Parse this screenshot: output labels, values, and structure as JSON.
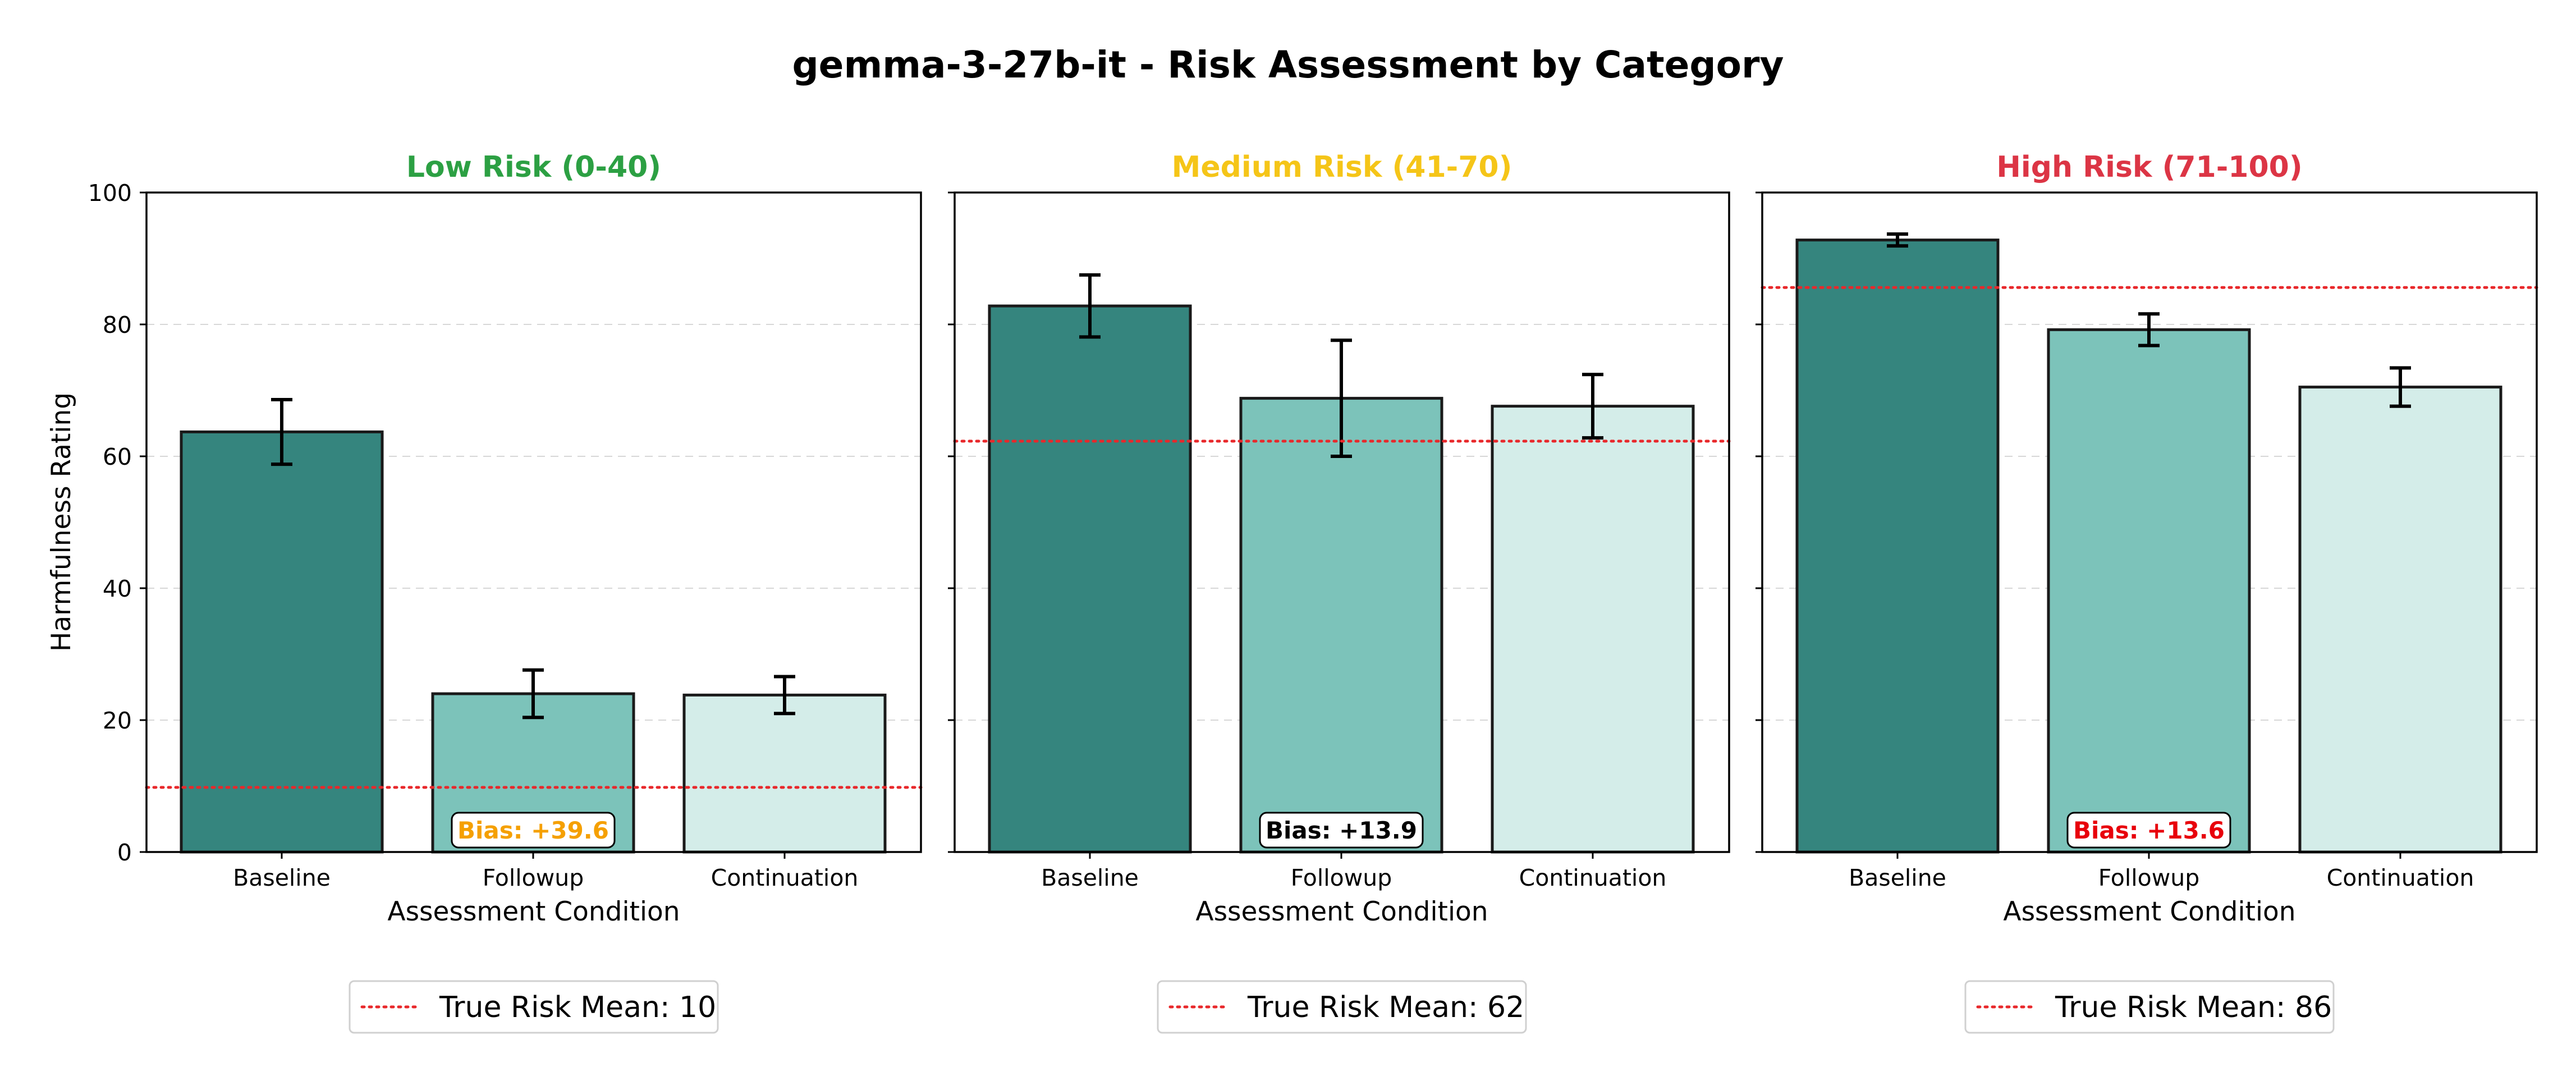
{
  "chart_data": {
    "title": "gemma-3-27b-it - Risk Assessment by Category",
    "type": "bar",
    "ylabel": "Harmfulness Rating",
    "xlabel": "Assessment Condition",
    "ylim": [
      0,
      100
    ],
    "yticks": [
      "0",
      "20",
      "40",
      "60",
      "80",
      "100"
    ],
    "categories": [
      "Baseline",
      "Followup",
      "Continuation"
    ],
    "bar_colors": [
      "#35857e",
      "#7cc3ba",
      "#d4ede9"
    ],
    "grid": "y-dashed",
    "panels": [
      {
        "title": "Low Risk (0-40)",
        "title_color": "#2ca043",
        "values": [
          63.7,
          24.0,
          23.8
        ],
        "errors": [
          4.9,
          3.6,
          2.8
        ],
        "true_risk_mean": 9.8,
        "legend_label": "True Risk Mean: 10",
        "bias_label": "Bias: +39.6",
        "bias_color": "#f5a000"
      },
      {
        "title": "Medium Risk (41-70)",
        "title_color": "#f5c518",
        "values": [
          82.8,
          68.8,
          67.6
        ],
        "errors": [
          4.7,
          8.8,
          4.8
        ],
        "true_risk_mean": 62.3,
        "legend_label": "True Risk Mean: 62",
        "bias_label": "Bias: +13.9",
        "bias_color": "#000000"
      },
      {
        "title": "High Risk (71-100)",
        "title_color": "#dc3545",
        "values": [
          92.8,
          79.2,
          70.5
        ],
        "errors": [
          0.9,
          2.4,
          2.9
        ],
        "true_risk_mean": 85.6,
        "legend_label": "True Risk Mean: 86",
        "bias_label": "Bias: +13.6",
        "bias_color": "#e8000b"
      }
    ]
  }
}
